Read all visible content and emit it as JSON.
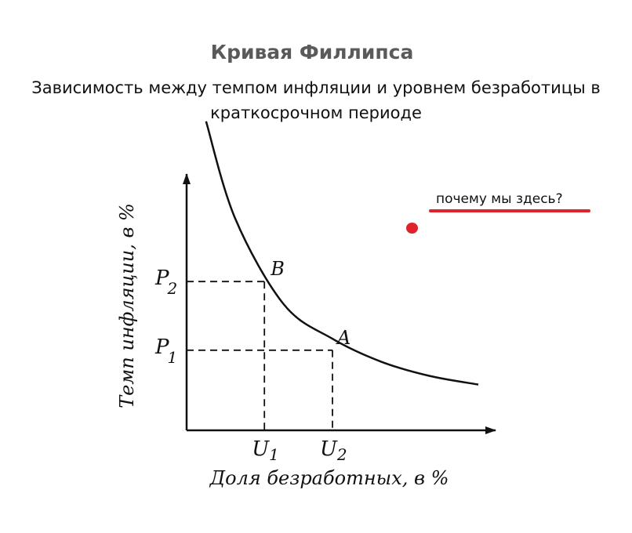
{
  "page": {
    "title": "Кривая Филлипса",
    "subtitle_line1": "Зависимость между темпом инфляции и уровнем безработицы в",
    "subtitle_line2": "краткосрочном периоде"
  },
  "annotation": {
    "note": "почему мы здесь?",
    "underline_color": "#e0222a",
    "dot_color": "#e0222a"
  },
  "chart_data": {
    "type": "line",
    "title": "Кривая Филлипса",
    "xlabel": "Доля безработных, в %",
    "ylabel": "Темп инфляции, в %",
    "grid": false,
    "curve": {
      "x": [
        0.4,
        1,
        2,
        3,
        4,
        5,
        6
      ],
      "y": [
        5.4,
        3.7,
        2.2,
        1.6,
        1.2,
        0.95,
        0.8
      ]
    },
    "points": [
      {
        "name": "B",
        "x": 1.6,
        "y": 2.6,
        "x_label_main": "U",
        "x_label_sub": "1",
        "y_label_main": "P",
        "y_label_sub": "2"
      },
      {
        "name": "A",
        "x": 3.0,
        "y": 1.4,
        "x_label_main": "U",
        "x_label_sub": "2",
        "y_label_main": "P",
        "y_label_sub": "1"
      }
    ]
  }
}
